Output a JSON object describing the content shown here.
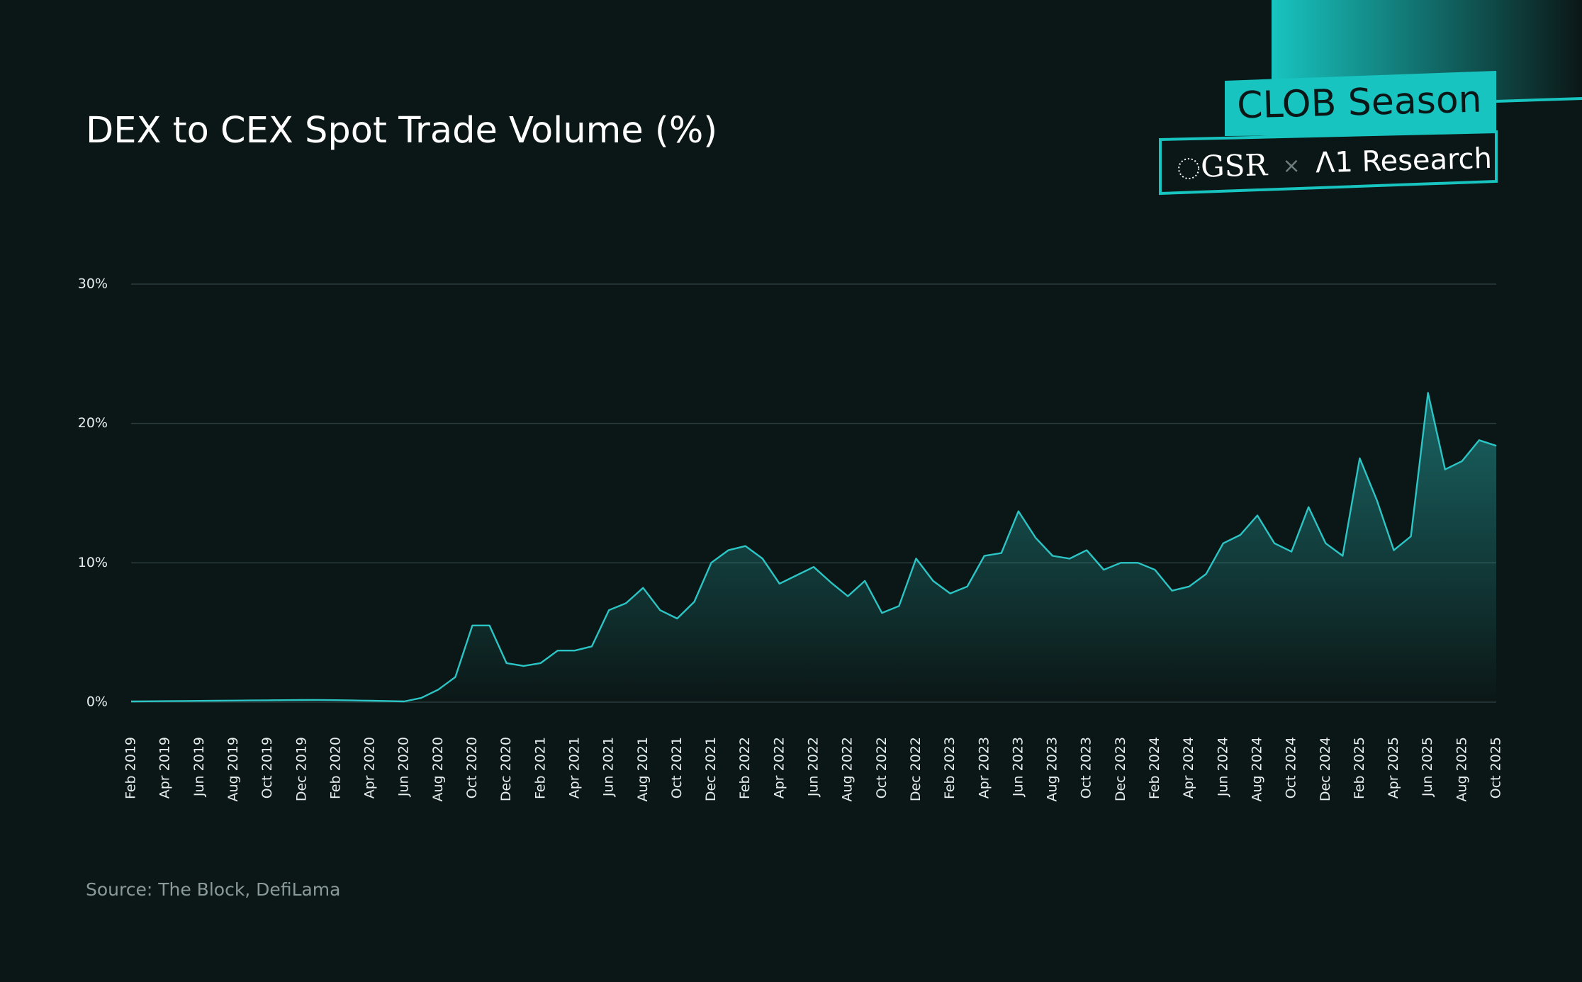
{
  "chart_data": {
    "type": "area",
    "title": "DEX to CEX Spot Trade Volume (%)",
    "source": "Source: The Block, DefiLama",
    "color": "#2cc5c5",
    "grid": true,
    "ylim": [
      0,
      30
    ],
    "yticks": [
      {
        "value": 0,
        "label": "0%"
      },
      {
        "value": 10,
        "label": "10%"
      },
      {
        "value": 20,
        "label": "20%"
      },
      {
        "value": 30,
        "label": "30%"
      }
    ],
    "categories": [
      "Feb 2019",
      null,
      "Apr 2019",
      null,
      "Jun 2019",
      null,
      "Aug 2019",
      null,
      "Oct 2019",
      null,
      "Dec 2019",
      null,
      "Feb 2020",
      null,
      "Apr 2020",
      null,
      "Jun 2020",
      null,
      "Aug 2020",
      null,
      "Oct 2020",
      null,
      "Dec 2020",
      null,
      "Feb 2021",
      null,
      "Apr 2021",
      null,
      "Jun 2021",
      null,
      "Aug 2021",
      null,
      "Oct 2021",
      null,
      "Dec 2021",
      null,
      "Feb 2022",
      null,
      "Apr 2022",
      null,
      "Jun 2022",
      null,
      "Aug 2022",
      null,
      "Oct 2022",
      null,
      "Dec 2022",
      null,
      "Feb 2023",
      null,
      "Apr 2023",
      null,
      "Jun 2023",
      null,
      "Aug 2023",
      null,
      "Oct 2023",
      null,
      "Dec 2023",
      null,
      "Feb 2024",
      null,
      "Apr 2024",
      null,
      "Jun 2024",
      null,
      "Aug 2024",
      null,
      "Oct 2024",
      null,
      "Dec 2024",
      null,
      "Feb 2025",
      null,
      "Apr 2025",
      null,
      "Jun 2025",
      null,
      "Aug 2025",
      null,
      "Oct 2025"
    ],
    "values": [
      0.05,
      0.06,
      0.07,
      0.08,
      0.09,
      0.1,
      0.11,
      0.12,
      0.13,
      0.14,
      0.15,
      0.16,
      0.14,
      0.12,
      0.1,
      0.08,
      0.05,
      0.3,
      0.9,
      1.8,
      5.5,
      5.5,
      2.8,
      2.6,
      2.8,
      3.7,
      3.7,
      4.0,
      6.6,
      7.1,
      8.2,
      6.6,
      6.0,
      7.2,
      10.0,
      10.9,
      11.2,
      10.3,
      8.5,
      9.1,
      9.7,
      8.6,
      7.6,
      8.7,
      6.4,
      6.9,
      10.3,
      8.7,
      7.8,
      8.3,
      10.5,
      10.7,
      13.7,
      11.8,
      10.5,
      10.3,
      10.9,
      9.5,
      10.0,
      10.0,
      9.5,
      8.0,
      8.3,
      9.2,
      11.4,
      12.0,
      13.4,
      11.4,
      10.8,
      14.0,
      11.4,
      10.5,
      17.5,
      14.5,
      10.9,
      11.9,
      22.2,
      16.7,
      17.3,
      18.8,
      18.4
    ]
  },
  "branding": {
    "badge": "CLOB Season",
    "partner": "GSR",
    "separator": "×",
    "research": "Λ1 Research"
  }
}
